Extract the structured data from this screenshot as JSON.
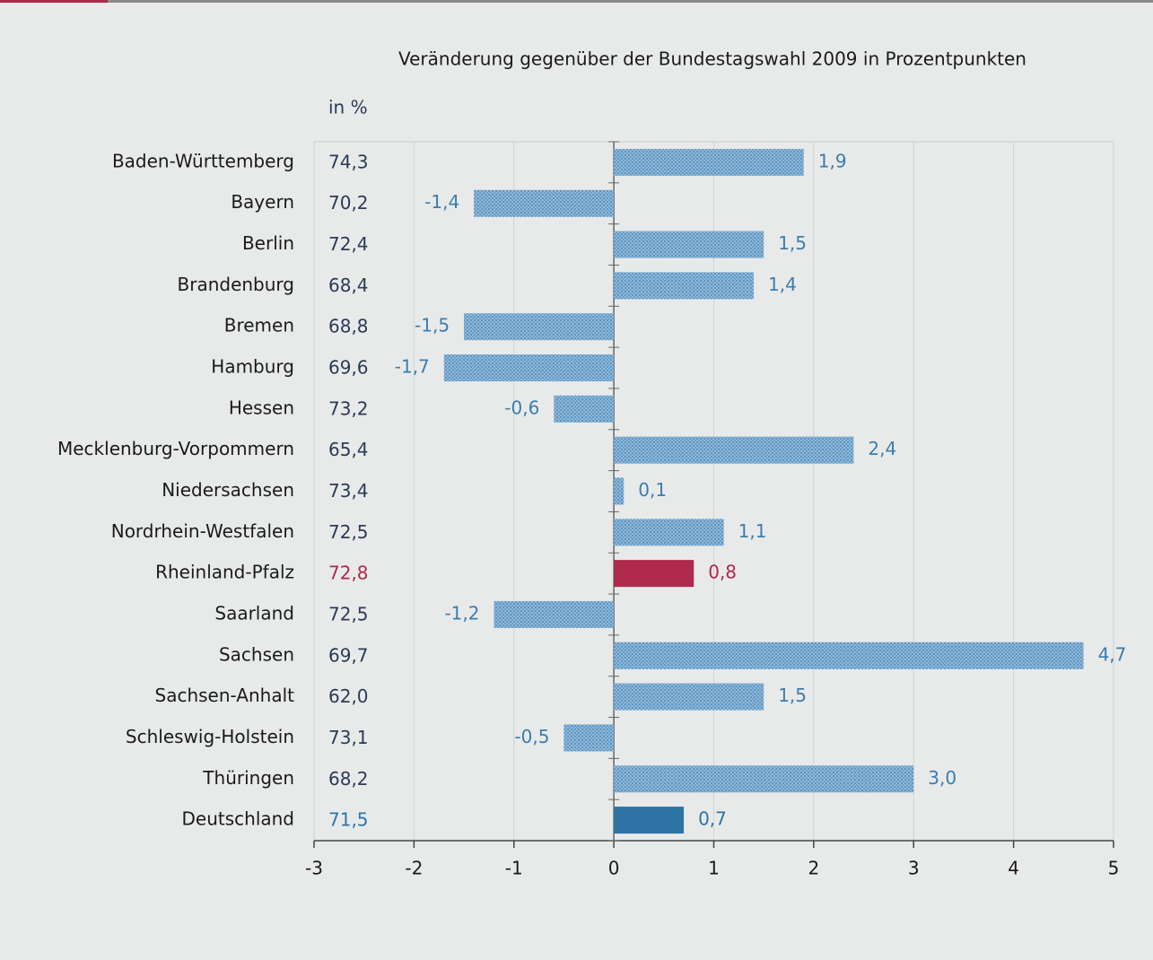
{
  "chart_data": {
    "type": "bar",
    "orientation": "horizontal",
    "title": "Veränderung gegenüber der Bundestagswahl 2009 in Prozentpunkten",
    "categories": [
      "Baden-Württemberg",
      "Bayern",
      "Berlin",
      "Brandenburg",
      "Bremen",
      "Hamburg",
      "Hessen",
      "Mecklenburg-Vorpommern",
      "Niedersachsen",
      "Nordrhein-Westfalen",
      "Rheinland-Pfalz",
      "Saarland",
      "Sachsen",
      "Sachsen-Anhalt",
      "Schleswig-Holstein",
      "Thüringen",
      "Deutschland"
    ],
    "values": [
      1.9,
      -1.4,
      1.5,
      1.4,
      -1.5,
      -1.7,
      -0.6,
      2.4,
      0.1,
      1.1,
      0.8,
      -1.2,
      4.7,
      1.5,
      -0.5,
      3.0,
      0.7
    ],
    "value_labels": [
      "1,9",
      "-1,4",
      "1,5",
      "1,4",
      "-1,5",
      "-1,7",
      "-0,6",
      "2,4",
      "0,1",
      "1,1",
      "0,8",
      "-1,2",
      "4,7",
      "1,5",
      "-0,5",
      "3,0",
      "0,7"
    ],
    "color": "#7eaed3",
    "colors": [
      "#7eaed3",
      "#7eaed3",
      "#7eaed3",
      "#7eaed3",
      "#7eaed3",
      "#7eaed3",
      "#7eaed3",
      "#7eaed3",
      "#7eaed3",
      "#7eaed3",
      "#b0284a",
      "#7eaed3",
      "#7eaed3",
      "#7eaed3",
      "#7eaed3",
      "#7eaed3",
      "#2e74a4"
    ],
    "turnout": {
      "label": "in %",
      "values": [
        74.3,
        70.2,
        72.4,
        68.4,
        68.8,
        69.6,
        73.2,
        65.4,
        73.4,
        72.5,
        72.8,
        72.5,
        69.7,
        62.0,
        73.1,
        68.2,
        71.5
      ],
      "value_labels": [
        "74,3",
        "70,2",
        "72,4",
        "68,4",
        "68,8",
        "69,6",
        "73,2",
        "65,4",
        "73,4",
        "72,5",
        "72,8",
        "72,5",
        "69,7",
        "62,0",
        "73,1",
        "68,2",
        "71,5"
      ]
    },
    "xlim": [
      -3,
      5
    ],
    "xticks": [
      -3,
      -2,
      -1,
      0,
      1,
      2,
      3,
      4,
      5
    ],
    "grid": true
  }
}
